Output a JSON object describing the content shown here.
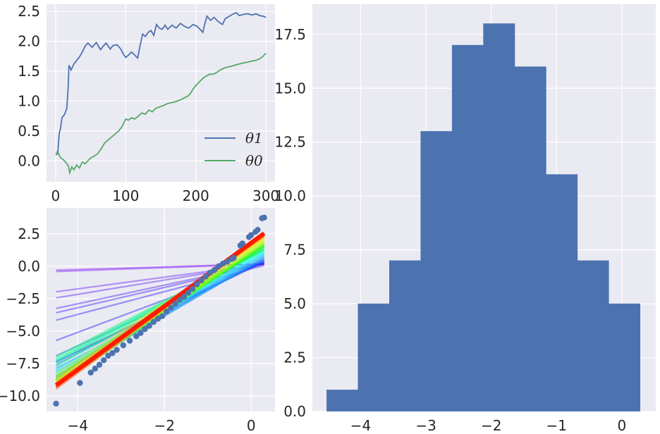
{
  "chart_data": [
    {
      "id": "params_trace",
      "type": "line",
      "xlim": [
        -13,
        313
      ],
      "ylim": [
        -0.35,
        2.62
      ],
      "xticks": [
        0,
        100,
        200,
        300
      ],
      "yticks": [
        0.0,
        0.5,
        1.0,
        1.5,
        2.0,
        2.5
      ],
      "xtick_labels": [
        "0",
        "100",
        "200",
        "300"
      ],
      "ytick_labels": [
        "0.0",
        "0.5",
        "1.0",
        "1.5",
        "2.0",
        "2.5"
      ],
      "grid": true,
      "legend_position": "lower-right",
      "series": [
        {
          "name": "θ1",
          "color": "#4c72b0",
          "points": [
            [
              0,
              0.1
            ],
            [
              3,
              0.12
            ],
            [
              5,
              0.45
            ],
            [
              7,
              0.55
            ],
            [
              9,
              0.72
            ],
            [
              13,
              0.78
            ],
            [
              16,
              0.88
            ],
            [
              18,
              1.25
            ],
            [
              19,
              1.6
            ],
            [
              22,
              1.52
            ],
            [
              26,
              1.62
            ],
            [
              30,
              1.68
            ],
            [
              34,
              1.74
            ],
            [
              38,
              1.82
            ],
            [
              42,
              1.92
            ],
            [
              46,
              1.97
            ],
            [
              52,
              1.9
            ],
            [
              58,
              1.98
            ],
            [
              64,
              1.86
            ],
            [
              68,
              1.92
            ],
            [
              72,
              1.97
            ],
            [
              78,
              1.87
            ],
            [
              82,
              1.93
            ],
            [
              88,
              1.94
            ],
            [
              93,
              1.87
            ],
            [
              97,
              1.78
            ],
            [
              100,
              1.73
            ],
            [
              104,
              1.77
            ],
            [
              108,
              1.82
            ],
            [
              112,
              1.78
            ],
            [
              117,
              1.72
            ],
            [
              120,
              1.9
            ],
            [
              124,
              2.12
            ],
            [
              128,
              2.08
            ],
            [
              132,
              2.15
            ],
            [
              136,
              2.18
            ],
            [
              140,
              2.1
            ],
            [
              144,
              2.28
            ],
            [
              148,
              2.22
            ],
            [
              152,
              2.2
            ],
            [
              156,
              2.27
            ],
            [
              160,
              2.2
            ],
            [
              166,
              2.27
            ],
            [
              172,
              2.22
            ],
            [
              178,
              2.3
            ],
            [
              184,
              2.25
            ],
            [
              190,
              2.22
            ],
            [
              196,
              2.28
            ],
            [
              202,
              2.25
            ],
            [
              206,
              2.2
            ],
            [
              210,
              2.15
            ],
            [
              213,
              2.3
            ],
            [
              216,
              2.42
            ],
            [
              221,
              2.35
            ],
            [
              226,
              2.4
            ],
            [
              232,
              2.33
            ],
            [
              238,
              2.28
            ],
            [
              242,
              2.38
            ],
            [
              248,
              2.42
            ],
            [
              252,
              2.45
            ],
            [
              258,
              2.48
            ],
            [
              262,
              2.43
            ],
            [
              268,
              2.45
            ],
            [
              274,
              2.46
            ],
            [
              280,
              2.44
            ],
            [
              286,
              2.46
            ],
            [
              291,
              2.43
            ],
            [
              296,
              2.42
            ],
            [
              300,
              2.4
            ]
          ]
        },
        {
          "name": "θ0",
          "color": "#55a868",
          "points": [
            [
              0,
              0.15
            ],
            [
              4,
              0.13
            ],
            [
              7,
              0.05
            ],
            [
              10,
              0.03
            ],
            [
              14,
              -0.02
            ],
            [
              18,
              -0.08
            ],
            [
              20,
              -0.2
            ],
            [
              23,
              -0.1
            ],
            [
              26,
              -0.15
            ],
            [
              30,
              -0.07
            ],
            [
              34,
              -0.12
            ],
            [
              38,
              -0.02
            ],
            [
              42,
              -0.05
            ],
            [
              46,
              0.0
            ],
            [
              50,
              0.05
            ],
            [
              55,
              0.08
            ],
            [
              60,
              0.12
            ],
            [
              65,
              0.2
            ],
            [
              70,
              0.3
            ],
            [
              75,
              0.35
            ],
            [
              80,
              0.4
            ],
            [
              85,
              0.45
            ],
            [
              90,
              0.5
            ],
            [
              95,
              0.58
            ],
            [
              100,
              0.7
            ],
            [
              104,
              0.68
            ],
            [
              108,
              0.72
            ],
            [
              113,
              0.7
            ],
            [
              118,
              0.75
            ],
            [
              123,
              0.8
            ],
            [
              128,
              0.78
            ],
            [
              133,
              0.85
            ],
            [
              138,
              0.82
            ],
            [
              143,
              0.88
            ],
            [
              148,
              0.9
            ],
            [
              153,
              0.92
            ],
            [
              158,
              0.95
            ],
            [
              163,
              0.97
            ],
            [
              168,
              0.98
            ],
            [
              173,
              1.0
            ],
            [
              178,
              1.02
            ],
            [
              183,
              1.05
            ],
            [
              188,
              1.08
            ],
            [
              192,
              1.12
            ],
            [
              196,
              1.2
            ],
            [
              200,
              1.26
            ],
            [
              205,
              1.32
            ],
            [
              210,
              1.38
            ],
            [
              215,
              1.42
            ],
            [
              220,
              1.45
            ],
            [
              225,
              1.45
            ],
            [
              230,
              1.48
            ],
            [
              235,
              1.52
            ],
            [
              240,
              1.55
            ],
            [
              245,
              1.57
            ],
            [
              250,
              1.58
            ],
            [
              256,
              1.6
            ],
            [
              262,
              1.62
            ],
            [
              268,
              1.64
            ],
            [
              274,
              1.65
            ],
            [
              280,
              1.67
            ],
            [
              285,
              1.68
            ],
            [
              290,
              1.7
            ],
            [
              295,
              1.74
            ],
            [
              300,
              1.8
            ]
          ]
        }
      ]
    },
    {
      "id": "regression_fits",
      "type": "scatter",
      "xlim": [
        -4.72,
        0.55
      ],
      "ylim": [
        -11.2,
        4.5
      ],
      "xticks": [
        -4,
        -2,
        0
      ],
      "yticks": [
        -10.0,
        -7.5,
        -5.0,
        -2.5,
        0.0,
        2.5
      ],
      "xtick_labels": [
        "−4",
        "−2",
        "0"
      ],
      "ytick_labels": [
        "−10.0",
        "−7.5",
        "−5.0",
        "−2.5",
        "0.0",
        "2.5"
      ],
      "grid": true,
      "line_x_range": [
        -4.5,
        0.3
      ],
      "fit_lines_note": "rainbow fit lines from fitted (theta0, theta1) at each iteration",
      "points": [
        [
          -4.5,
          -10.6
        ],
        [
          -3.95,
          -9.0
        ],
        [
          -3.7,
          -8.2
        ],
        [
          -3.6,
          -7.9
        ],
        [
          -3.5,
          -7.6
        ],
        [
          -3.4,
          -7.25
        ],
        [
          -3.3,
          -6.9
        ],
        [
          -3.2,
          -6.7
        ],
        [
          -3.1,
          -6.45
        ],
        [
          -2.95,
          -6.1
        ],
        [
          -2.8,
          -5.75
        ],
        [
          -2.65,
          -5.4
        ],
        [
          -2.55,
          -5.15
        ],
        [
          -2.45,
          -4.85
        ],
        [
          -2.35,
          -4.6
        ],
        [
          -2.25,
          -4.3
        ],
        [
          -2.15,
          -4.05
        ],
        [
          -2.05,
          -3.85
        ],
        [
          -1.95,
          -3.5
        ],
        [
          -1.85,
          -3.2
        ],
        [
          -1.75,
          -2.9
        ],
        [
          -1.65,
          -2.6
        ],
        [
          -1.55,
          -2.35
        ],
        [
          -1.45,
          -2.05
        ],
        [
          -1.35,
          -1.75
        ],
        [
          -1.25,
          -1.4
        ],
        [
          -1.15,
          -1.1
        ],
        [
          -1.05,
          -0.8
        ],
        [
          -0.95,
          -0.5
        ],
        [
          -0.85,
          -0.3
        ],
        [
          -0.75,
          0.0
        ],
        [
          -0.65,
          0.2
        ],
        [
          -0.55,
          0.35
        ],
        [
          -0.45,
          0.55
        ],
        [
          -0.4,
          0.65
        ],
        [
          -0.25,
          1.6
        ],
        [
          -0.2,
          1.75
        ],
        [
          -0.05,
          2.25
        ],
        [
          0.0,
          2.4
        ],
        [
          0.1,
          2.65
        ],
        [
          0.15,
          2.8
        ],
        [
          0.25,
          3.7
        ],
        [
          0.3,
          3.75
        ]
      ]
    },
    {
      "id": "histogram",
      "type": "bar",
      "xlim": [
        -4.74,
        0.52
      ],
      "ylim": [
        0,
        18.9
      ],
      "xticks": [
        -4,
        -3,
        -2,
        -1,
        0
      ],
      "yticks": [
        0.0,
        2.5,
        5.0,
        7.5,
        10.0,
        12.5,
        15.0,
        17.5
      ],
      "xtick_labels": [
        "−4",
        "−3",
        "−2",
        "−1",
        "0"
      ],
      "ytick_labels": [
        "0.0",
        "2.5",
        "5.0",
        "7.5",
        "10.0",
        "12.5",
        "15.0",
        "17.5"
      ],
      "grid": true,
      "color": "#4c72b0",
      "bin_edges": [
        -4.52,
        -4.04,
        -3.56,
        -3.08,
        -2.6,
        -2.12,
        -1.64,
        -1.16,
        -0.68,
        -0.2,
        0.28
      ],
      "counts": [
        1,
        5,
        7,
        13,
        17,
        18,
        16,
        11,
        7,
        5
      ]
    }
  ]
}
